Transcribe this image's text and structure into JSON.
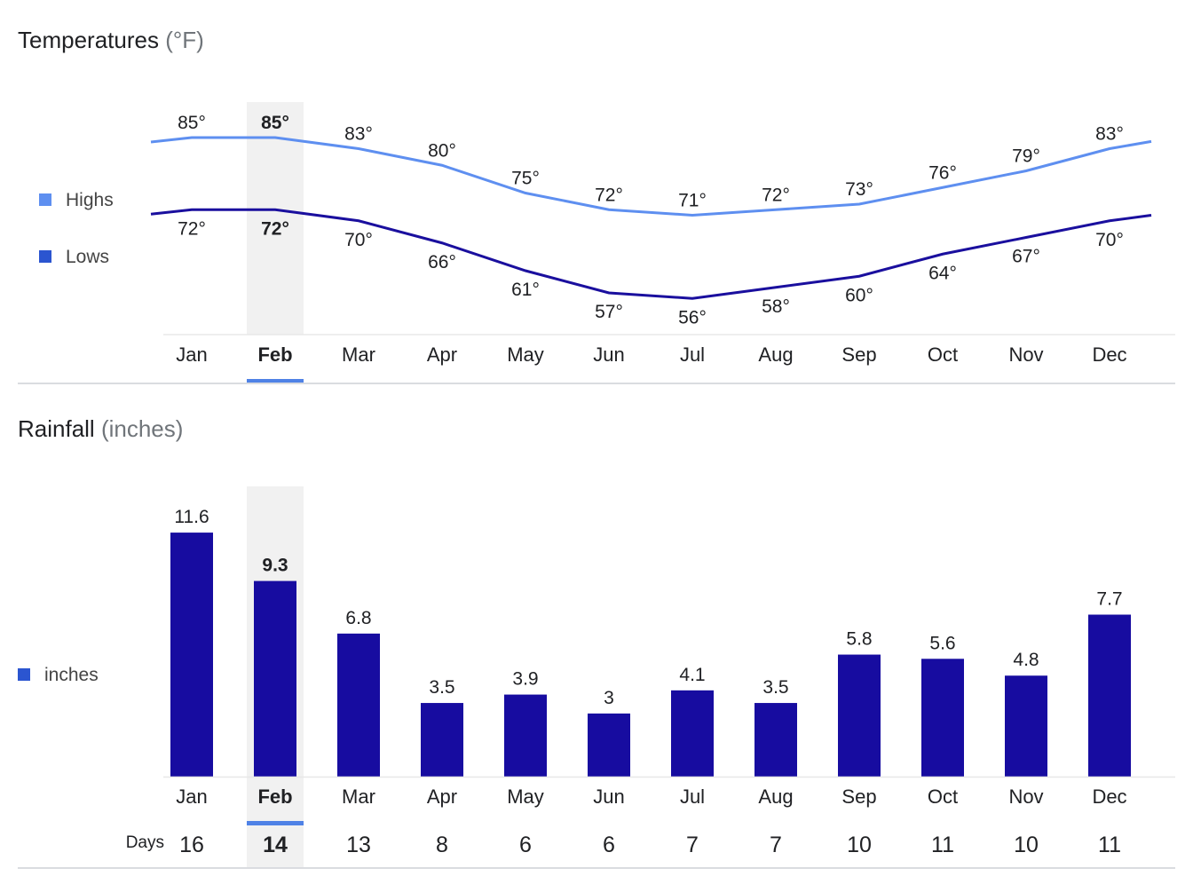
{
  "temperature": {
    "title": "Temperatures",
    "unit": "(°F)",
    "selected_month": "Feb",
    "chart_data": {
      "type": "line",
      "categories": [
        "Jan",
        "Feb",
        "Mar",
        "Apr",
        "May",
        "Jun",
        "Jul",
        "Aug",
        "Sep",
        "Oct",
        "Nov",
        "Dec"
      ],
      "series": [
        {
          "name": "Highs",
          "color": "#5e8ff0",
          "values": [
            85,
            85,
            83,
            80,
            75,
            72,
            71,
            72,
            73,
            76,
            79,
            83
          ]
        },
        {
          "name": "Lows",
          "color": "#1a0f9e",
          "values": [
            72,
            72,
            70,
            66,
            61,
            57,
            56,
            58,
            60,
            64,
            67,
            70
          ]
        }
      ],
      "value_suffix": "°",
      "legend_colors": [
        "#5e8ff0",
        "#2b55d0"
      ],
      "legend": "left"
    }
  },
  "rainfall": {
    "title": "Rainfall",
    "unit": "(inches)",
    "selected_month": "Feb",
    "chart_data": {
      "type": "bar",
      "categories": [
        "Jan",
        "Feb",
        "Mar",
        "Apr",
        "May",
        "Jun",
        "Jul",
        "Aug",
        "Sep",
        "Oct",
        "Nov",
        "Dec"
      ],
      "series": [
        {
          "name": "inches",
          "color": "#170ca0",
          "values": [
            11.6,
            9.3,
            6.8,
            3.5,
            3.9,
            3,
            4.1,
            3.5,
            5.8,
            5.6,
            4.8,
            7.7
          ]
        }
      ],
      "legend_color": "#2b55d0",
      "legend": "left"
    },
    "days_label": "Days",
    "days": [
      16,
      14,
      13,
      8,
      6,
      6,
      7,
      7,
      10,
      11,
      10,
      11
    ]
  },
  "accent": "#4f82e6"
}
